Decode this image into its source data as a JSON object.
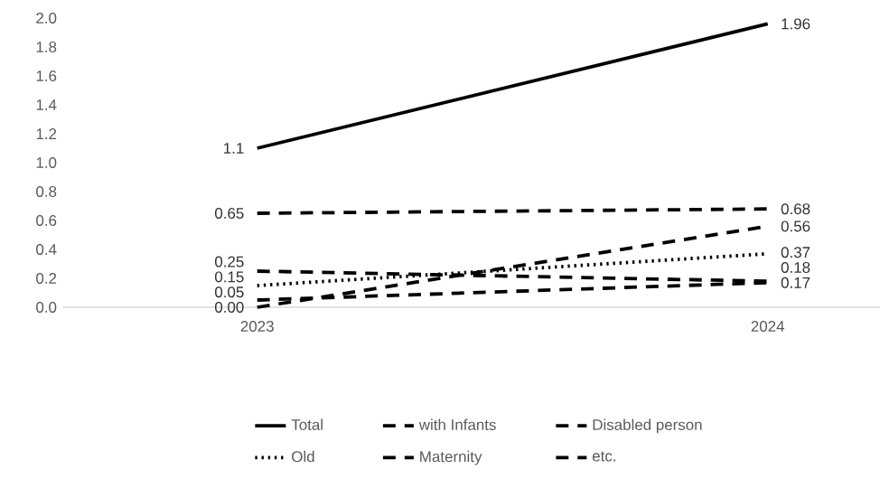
{
  "chart_data": {
    "type": "line",
    "categories": [
      "2023",
      "2024"
    ],
    "series": [
      {
        "name": "Total",
        "color": "#000000",
        "line_style": "solid",
        "values": [
          1.1,
          1.96
        ],
        "value_labels": [
          "1.1",
          "1.96"
        ]
      },
      {
        "name": "with Infants",
        "color": "#000000",
        "line_style": "dashed",
        "values": [
          0.65,
          0.68
        ],
        "value_labels": [
          "0.65",
          "0.68"
        ]
      },
      {
        "name": "Disabled person",
        "color": "#000000",
        "line_style": "dashed",
        "values": [
          0.0,
          0.56
        ],
        "value_labels": [
          "0.00",
          "0.56"
        ]
      },
      {
        "name": "Old",
        "color": "#000000",
        "line_style": "dotted",
        "values": [
          0.15,
          0.37
        ],
        "value_labels": [
          "0.15",
          "0.37"
        ]
      },
      {
        "name": "Maternity",
        "color": "#000000",
        "line_style": "dashed",
        "values": [
          0.05,
          0.17
        ],
        "value_labels": [
          "0.05",
          "0.17"
        ]
      },
      {
        "name": "etc.",
        "color": "#000000",
        "line_style": "dashed",
        "values": [
          0.25,
          0.18
        ],
        "value_labels": [
          "0.25",
          "0.18"
        ]
      }
    ],
    "ylim": [
      0,
      2.0
    ],
    "yticks": [
      {
        "value": 0,
        "label": "0.0"
      },
      {
        "value": 0.2,
        "label": "0.2"
      },
      {
        "value": 0.4,
        "label": "0.4"
      },
      {
        "value": 0.6,
        "label": "0.6"
      },
      {
        "value": 0.8,
        "label": "0.8"
      },
      {
        "value": 1.0,
        "label": "1.0"
      },
      {
        "value": 1.2,
        "label": "1.2"
      },
      {
        "value": 1.4,
        "label": "1.4"
      },
      {
        "value": 1.6,
        "label": "1.6"
      },
      {
        "value": 1.8,
        "label": "1.8"
      },
      {
        "value": 2.0,
        "label": "2.0"
      }
    ],
    "grid": false,
    "legend": "bottom",
    "marker": "none"
  }
}
